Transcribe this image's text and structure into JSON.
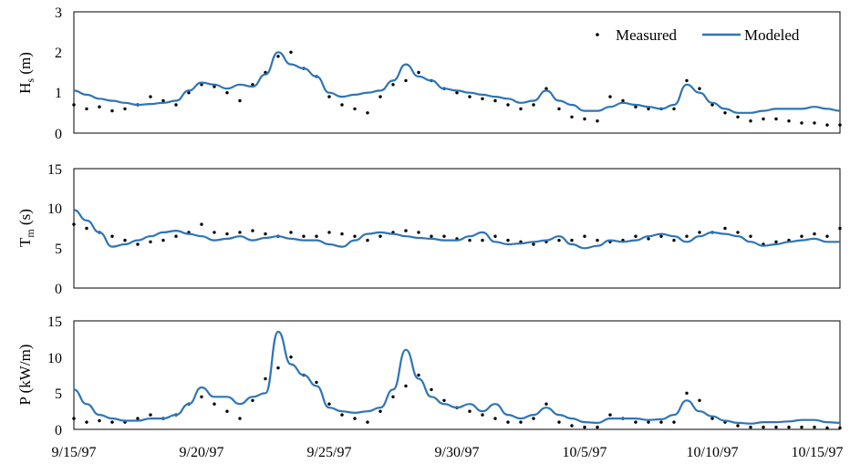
{
  "figure": {
    "x_ticks": [
      "9/15/97",
      "9/20/97",
      "9/25/97",
      "9/30/97",
      "10/5/97",
      "10/10/97",
      "10/15/97"
    ],
    "legend": {
      "measured": "Measured",
      "modeled": "Modeled",
      "placement": "top-right"
    },
    "colors": {
      "modeled": "#2E75B6",
      "measured": "#000000",
      "axis": "#000000"
    }
  },
  "chart_data": [
    {
      "type": "line",
      "ylabel_main": "H",
      "ylabel_sub": "s",
      "ylabel_tail": " (m)",
      "ylim": [
        0,
        3
      ],
      "yticks": [
        "0",
        "1",
        "2",
        "3"
      ],
      "grid": false,
      "xlim": [
        "9/15/97",
        "10/15/97"
      ],
      "series": [
        {
          "name": "Measured",
          "style": "dots",
          "x": [
            "9/15/97",
            "9/15/97 12:00",
            "9/16/97",
            "9/16/97 12:00",
            "9/17/97",
            "9/17/97 12:00",
            "9/18/97",
            "9/18/97 12:00",
            "9/19/97",
            "9/19/97 12:00",
            "9/20/97",
            "9/20/97 12:00",
            "9/21/97",
            "9/21/97 12:00",
            "9/22/97",
            "9/22/97 12:00",
            "9/23/97",
            "9/23/97 12:00",
            "9/24/97",
            "9/24/97 12:00",
            "9/25/97",
            "9/25/97 12:00",
            "9/26/97",
            "9/26/97 12:00",
            "9/27/97",
            "9/27/97 12:00",
            "9/28/97",
            "9/28/97 12:00",
            "9/29/97",
            "9/29/97 12:00",
            "9/30/97",
            "9/30/97 12:00",
            "10/1/97",
            "10/1/97 12:00",
            "10/2/97",
            "10/2/97 12:00",
            "10/3/97",
            "10/3/97 12:00",
            "10/4/97",
            "10/4/97 12:00",
            "10/5/97",
            "10/5/97 12:00",
            "10/6/97",
            "10/6/97 12:00",
            "10/7/97",
            "10/7/97 12:00",
            "10/8/97",
            "10/8/97 12:00",
            "10/9/97",
            "10/9/97 12:00",
            "10/10/97",
            "10/10/97 12:00",
            "10/11/97",
            "10/11/97 12:00",
            "10/12/97",
            "10/12/97 12:00",
            "10/13/97",
            "10/13/97 12:00",
            "10/14/97",
            "10/14/97 12:00",
            "10/15/97"
          ],
          "values": [
            0.7,
            0.6,
            0.65,
            0.55,
            0.6,
            0.7,
            0.9,
            0.8,
            0.7,
            1.0,
            1.2,
            1.15,
            1.0,
            0.8,
            1.2,
            1.5,
            1.9,
            2.0,
            1.6,
            1.4,
            0.9,
            0.7,
            0.6,
            0.5,
            0.9,
            1.2,
            1.3,
            1.5,
            1.3,
            1.1,
            1.0,
            0.9,
            0.85,
            0.8,
            0.7,
            0.6,
            0.7,
            1.1,
            0.6,
            0.4,
            0.35,
            0.3,
            0.9,
            0.8,
            0.65,
            0.6,
            0.6,
            0.6,
            1.3,
            1.1,
            0.7,
            0.5,
            0.4,
            0.3,
            0.35,
            0.35,
            0.3,
            0.25,
            0.25,
            0.2,
            0.2
          ]
        },
        {
          "name": "Modeled",
          "style": "line",
          "x": [
            "9/15/97",
            "9/15/97 12:00",
            "9/16/97",
            "9/16/97 12:00",
            "9/17/97",
            "9/17/97 12:00",
            "9/18/97",
            "9/18/97 12:00",
            "9/19/97",
            "9/19/97 12:00",
            "9/20/97",
            "9/20/97 12:00",
            "9/21/97",
            "9/21/97 12:00",
            "9/22/97",
            "9/22/97 12:00",
            "9/23/97",
            "9/23/97 12:00",
            "9/24/97",
            "9/24/97 12:00",
            "9/25/97",
            "9/25/97 12:00",
            "9/26/97",
            "9/26/97 12:00",
            "9/27/97",
            "9/27/97 12:00",
            "9/28/97",
            "9/28/97 12:00",
            "9/29/97",
            "9/29/97 12:00",
            "9/30/97",
            "9/30/97 12:00",
            "10/1/97",
            "10/1/97 12:00",
            "10/2/97",
            "10/2/97 12:00",
            "10/3/97",
            "10/3/97 12:00",
            "10/4/97",
            "10/4/97 12:00",
            "10/5/97",
            "10/5/97 12:00",
            "10/6/97",
            "10/6/97 12:00",
            "10/7/97",
            "10/7/97 12:00",
            "10/8/97",
            "10/8/97 12:00",
            "10/9/97",
            "10/9/97 12:00",
            "10/10/97",
            "10/10/97 12:00",
            "10/11/97",
            "10/11/97 12:00",
            "10/12/97",
            "10/12/97 12:00",
            "10/13/97",
            "10/13/97 12:00",
            "10/14/97",
            "10/14/97 12:00",
            "10/15/97"
          ],
          "values": [
            1.05,
            0.95,
            0.85,
            0.8,
            0.75,
            0.7,
            0.72,
            0.75,
            0.8,
            1.05,
            1.25,
            1.2,
            1.1,
            1.2,
            1.15,
            1.45,
            2.0,
            1.7,
            1.6,
            1.4,
            1.0,
            0.9,
            0.95,
            1.0,
            1.05,
            1.3,
            1.7,
            1.4,
            1.3,
            1.1,
            1.05,
            1.0,
            0.95,
            0.9,
            0.85,
            0.75,
            0.8,
            1.05,
            0.8,
            0.7,
            0.55,
            0.55,
            0.65,
            0.75,
            0.7,
            0.65,
            0.6,
            0.7,
            1.2,
            1.0,
            0.75,
            0.6,
            0.5,
            0.5,
            0.55,
            0.6,
            0.6,
            0.6,
            0.65,
            0.6,
            0.55
          ]
        }
      ]
    },
    {
      "type": "line",
      "ylabel_main": "T",
      "ylabel_sub": "m",
      "ylabel_tail": " (s)",
      "ylim": [
        0,
        15
      ],
      "yticks": [
        "0",
        "5",
        "10",
        "15"
      ],
      "grid": false,
      "xlim": [
        "9/15/97",
        "10/15/97"
      ],
      "series": [
        {
          "name": "Measured",
          "style": "dots",
          "x": [
            "9/15/97",
            "9/15/97 12:00",
            "9/16/97",
            "9/16/97 12:00",
            "9/17/97",
            "9/17/97 12:00",
            "9/18/97",
            "9/18/97 12:00",
            "9/19/97",
            "9/19/97 12:00",
            "9/20/97",
            "9/20/97 12:00",
            "9/21/97",
            "9/21/97 12:00",
            "9/22/97",
            "9/22/97 12:00",
            "9/23/97",
            "9/23/97 12:00",
            "9/24/97",
            "9/24/97 12:00",
            "9/25/97",
            "9/25/97 12:00",
            "9/26/97",
            "9/26/97 12:00",
            "9/27/97",
            "9/27/97 12:00",
            "9/28/97",
            "9/28/97 12:00",
            "9/29/97",
            "9/29/97 12:00",
            "9/30/97",
            "9/30/97 12:00",
            "10/1/97",
            "10/1/97 12:00",
            "10/2/97",
            "10/2/97 12:00",
            "10/3/97",
            "10/3/97 12:00",
            "10/4/97",
            "10/4/97 12:00",
            "10/5/97",
            "10/5/97 12:00",
            "10/6/97",
            "10/6/97 12:00",
            "10/7/97",
            "10/7/97 12:00",
            "10/8/97",
            "10/8/97 12:00",
            "10/9/97",
            "10/9/97 12:00",
            "10/10/97",
            "10/10/97 12:00",
            "10/11/97",
            "10/11/97 12:00",
            "10/12/97",
            "10/12/97 12:00",
            "10/13/97",
            "10/13/97 12:00",
            "10/14/97",
            "10/14/97 12:00",
            "10/15/97"
          ],
          "values": [
            8.0,
            7.5,
            7.0,
            6.5,
            6.0,
            5.5,
            5.8,
            6.0,
            6.5,
            7.0,
            8.0,
            7.0,
            6.8,
            7.0,
            7.2,
            6.8,
            6.5,
            7.0,
            6.5,
            6.5,
            7.0,
            6.8,
            6.5,
            6.0,
            6.5,
            7.0,
            7.2,
            7.0,
            6.5,
            6.5,
            6.2,
            6.0,
            6.0,
            6.5,
            6.0,
            5.8,
            5.5,
            5.8,
            6.0,
            6.0,
            6.5,
            6.0,
            5.8,
            6.0,
            6.5,
            6.2,
            6.5,
            6.0,
            6.5,
            7.0,
            7.0,
            7.5,
            7.0,
            6.5,
            5.5,
            5.8,
            6.0,
            6.5,
            6.8,
            6.5,
            7.5
          ]
        },
        {
          "name": "Modeled",
          "style": "line",
          "x": [
            "9/15/97",
            "9/15/97 12:00",
            "9/16/97",
            "9/16/97 12:00",
            "9/17/97",
            "9/17/97 12:00",
            "9/18/97",
            "9/18/97 12:00",
            "9/19/97",
            "9/19/97 12:00",
            "9/20/97",
            "9/20/97 12:00",
            "9/21/97",
            "9/21/97 12:00",
            "9/22/97",
            "9/22/97 12:00",
            "9/23/97",
            "9/23/97 12:00",
            "9/24/97",
            "9/24/97 12:00",
            "9/25/97",
            "9/25/97 12:00",
            "9/26/97",
            "9/26/97 12:00",
            "9/27/97",
            "9/27/97 12:00",
            "9/28/97",
            "9/28/97 12:00",
            "9/29/97",
            "9/29/97 12:00",
            "9/30/97",
            "9/30/97 12:00",
            "10/1/97",
            "10/1/97 12:00",
            "10/2/97",
            "10/2/97 12:00",
            "10/3/97",
            "10/3/97 12:00",
            "10/4/97",
            "10/4/97 12:00",
            "10/5/97",
            "10/5/97 12:00",
            "10/6/97",
            "10/6/97 12:00",
            "10/7/97",
            "10/7/97 12:00",
            "10/8/97",
            "10/8/97 12:00",
            "10/9/97",
            "10/9/97 12:00",
            "10/10/97",
            "10/10/97 12:00",
            "10/11/97",
            "10/11/97 12:00",
            "10/12/97",
            "10/12/97 12:00",
            "10/13/97",
            "10/13/97 12:00",
            "10/14/97",
            "10/14/97 12:00",
            "10/15/97"
          ],
          "values": [
            9.8,
            8.5,
            7.0,
            5.2,
            5.5,
            6.0,
            6.5,
            7.0,
            7.2,
            6.8,
            6.5,
            6.0,
            6.2,
            6.5,
            6.0,
            6.3,
            6.5,
            6.2,
            6.0,
            6.0,
            5.5,
            5.2,
            6.0,
            6.8,
            7.0,
            6.8,
            6.5,
            6.3,
            6.2,
            6.0,
            6.0,
            6.5,
            7.0,
            5.8,
            5.5,
            5.6,
            5.8,
            6.0,
            6.5,
            5.5,
            5.0,
            5.3,
            6.0,
            5.8,
            6.0,
            6.5,
            6.8,
            6.5,
            5.8,
            6.5,
            7.0,
            6.8,
            6.5,
            5.8,
            5.3,
            5.5,
            5.8,
            6.0,
            6.2,
            5.8,
            5.8
          ]
        }
      ]
    },
    {
      "type": "line",
      "ylabel_main": "P (kW/m)",
      "ylabel_sub": "",
      "ylabel_tail": "",
      "ylim": [
        0,
        15
      ],
      "yticks": [
        "0",
        "5",
        "10",
        "15"
      ],
      "grid": false,
      "xlim": [
        "9/15/97",
        "10/15/97"
      ],
      "series": [
        {
          "name": "Measured",
          "style": "dots",
          "x": [
            "9/15/97",
            "9/15/97 12:00",
            "9/16/97",
            "9/16/97 12:00",
            "9/17/97",
            "9/17/97 12:00",
            "9/18/97",
            "9/18/97 12:00",
            "9/19/97",
            "9/19/97 12:00",
            "9/20/97",
            "9/20/97 12:00",
            "9/21/97",
            "9/21/97 12:00",
            "9/22/97",
            "9/22/97 12:00",
            "9/23/97",
            "9/23/97 12:00",
            "9/24/97",
            "9/24/97 12:00",
            "9/25/97",
            "9/25/97 12:00",
            "9/26/97",
            "9/26/97 12:00",
            "9/27/97",
            "9/27/97 12:00",
            "9/28/97",
            "9/28/97 12:00",
            "9/29/97",
            "9/29/97 12:00",
            "9/30/97",
            "9/30/97 12:00",
            "10/1/97",
            "10/1/97 12:00",
            "10/2/97",
            "10/2/97 12:00",
            "10/3/97",
            "10/3/97 12:00",
            "10/4/97",
            "10/4/97 12:00",
            "10/5/97",
            "10/5/97 12:00",
            "10/6/97",
            "10/6/97 12:00",
            "10/7/97",
            "10/7/97 12:00",
            "10/8/97",
            "10/8/97 12:00",
            "10/9/97",
            "10/9/97 12:00",
            "10/10/97",
            "10/10/97 12:00",
            "10/11/97",
            "10/11/97 12:00",
            "10/12/97",
            "10/12/97 12:00",
            "10/13/97",
            "10/13/97 12:00",
            "10/14/97",
            "10/14/97 12:00",
            "10/15/97"
          ],
          "values": [
            1.5,
            1.0,
            1.2,
            1.0,
            1.0,
            1.5,
            2.0,
            1.5,
            2.0,
            3.5,
            4.5,
            3.5,
            2.5,
            1.5,
            4.0,
            7.0,
            8.5,
            10.0,
            7.5,
            6.5,
            3.5,
            2.0,
            1.5,
            1.0,
            2.5,
            4.5,
            6.0,
            7.5,
            5.5,
            4.0,
            3.0,
            2.5,
            2.0,
            1.5,
            1.0,
            1.0,
            1.5,
            3.5,
            1.0,
            0.5,
            0.3,
            0.3,
            2.0,
            1.5,
            1.0,
            1.0,
            1.0,
            1.0,
            5.0,
            4.0,
            1.5,
            1.0,
            0.5,
            0.3,
            0.3,
            0.3,
            0.3,
            0.3,
            0.3,
            0.2,
            0.2
          ]
        },
        {
          "name": "Modeled",
          "style": "line",
          "x": [
            "9/15/97",
            "9/15/97 12:00",
            "9/16/97",
            "9/16/97 12:00",
            "9/17/97",
            "9/17/97 12:00",
            "9/18/97",
            "9/18/97 12:00",
            "9/19/97",
            "9/19/97 12:00",
            "9/20/97",
            "9/20/97 12:00",
            "9/21/97",
            "9/21/97 12:00",
            "9/22/97",
            "9/22/97 12:00",
            "9/23/97",
            "9/23/97 12:00",
            "9/24/97",
            "9/24/97 12:00",
            "9/25/97",
            "9/25/97 12:00",
            "9/26/97",
            "9/26/97 12:00",
            "9/27/97",
            "9/27/97 12:00",
            "9/28/97",
            "9/28/97 12:00",
            "9/29/97",
            "9/29/97 12:00",
            "9/30/97",
            "9/30/97 12:00",
            "10/1/97",
            "10/1/97 12:00",
            "10/2/97",
            "10/2/97 12:00",
            "10/3/97",
            "10/3/97 12:00",
            "10/4/97",
            "10/4/97 12:00",
            "10/5/97",
            "10/5/97 12:00",
            "10/6/97",
            "10/6/97 12:00",
            "10/7/97",
            "10/7/97 12:00",
            "10/8/97",
            "10/8/97 12:00",
            "10/9/97",
            "10/9/97 12:00",
            "10/10/97",
            "10/10/97 12:00",
            "10/11/97",
            "10/11/97 12:00",
            "10/12/97",
            "10/12/97 12:00",
            "10/13/97",
            "10/13/97 12:00",
            "10/14/97",
            "10/14/97 12:00",
            "10/15/97"
          ],
          "values": [
            5.5,
            3.5,
            2.0,
            1.5,
            1.2,
            1.2,
            1.5,
            1.5,
            2.0,
            3.5,
            5.8,
            4.5,
            4.5,
            3.5,
            4.5,
            5.0,
            13.5,
            9.0,
            7.5,
            6.0,
            3.0,
            2.5,
            2.3,
            2.5,
            3.0,
            5.5,
            11.0,
            7.0,
            4.5,
            3.5,
            3.0,
            3.5,
            2.5,
            3.5,
            2.0,
            1.5,
            2.0,
            3.0,
            2.0,
            1.5,
            1.0,
            0.9,
            1.5,
            1.5,
            1.5,
            1.3,
            1.4,
            2.0,
            4.0,
            2.5,
            1.8,
            1.2,
            0.9,
            0.8,
            1.0,
            1.0,
            1.1,
            1.3,
            1.3,
            1.0,
            0.9
          ]
        }
      ]
    }
  ]
}
